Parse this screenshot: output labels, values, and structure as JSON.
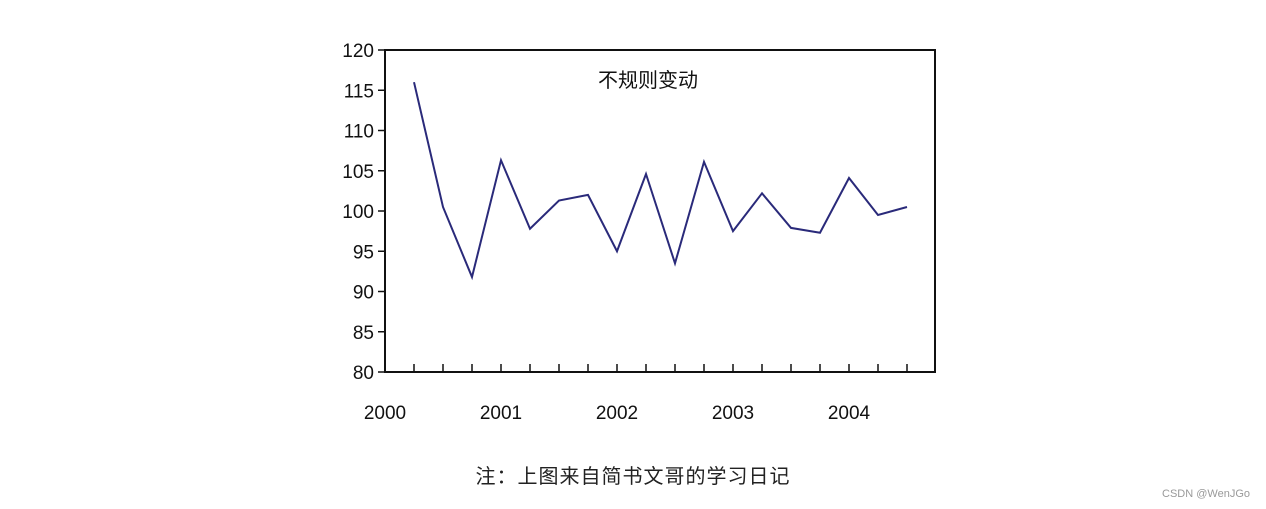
{
  "chart_data": {
    "type": "line",
    "title": "不规则变动",
    "xlabel": "",
    "ylabel": "",
    "ylim": [
      80,
      120
    ],
    "yticks": [
      80,
      85,
      90,
      95,
      100,
      105,
      110,
      115,
      120
    ],
    "x_labels": [
      "2000",
      "2001",
      "2002",
      "2003",
      "2004"
    ],
    "x_label_positions": [
      -1,
      3,
      7,
      11,
      15
    ],
    "grid": false,
    "series": [
      {
        "values": [
          116,
          100.5,
          91.8,
          106.3,
          97.8,
          101.3,
          102,
          95,
          104.6,
          93.5,
          106.1,
          97.5,
          102.2,
          97.9,
          97.3,
          104.1,
          99.5,
          100.5
        ]
      }
    ],
    "colors": {
      "line": "#2a2a7a",
      "axis": "#111111"
    }
  },
  "caption": "注：上图来自简书文哥的学习日记",
  "watermark": "CSDN @WenJGo"
}
